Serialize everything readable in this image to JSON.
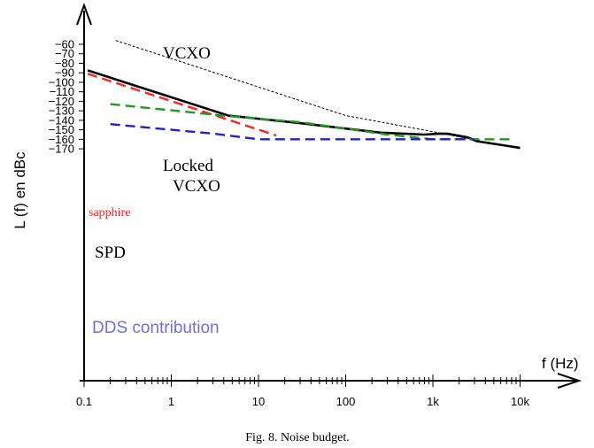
{
  "chart_data": {
    "type": "line",
    "xscale": "log",
    "xlim": [
      0.1,
      10000
    ],
    "ylim": [
      -178,
      -50
    ],
    "xlabel": "f (Hz)",
    "ylabel": "L (f) en dBc",
    "caption": "Fig. 8. Noise budget.",
    "x_ticks": [
      {
        "value": 0.1,
        "label": "0.1"
      },
      {
        "value": 1,
        "label": "1"
      },
      {
        "value": 10,
        "label": "10"
      },
      {
        "value": 100,
        "label": "100"
      },
      {
        "value": 1000,
        "label": "1k"
      },
      {
        "value": 10000,
        "label": "10k"
      }
    ],
    "y_ticks": [
      -60,
      -70,
      -80,
      -90,
      -100,
      -110,
      -120,
      -130,
      -140,
      -150,
      -160,
      -170
    ],
    "series": [
      {
        "id": "vcxo",
        "color": "#000000",
        "style": "fine-dashed",
        "points": [
          [
            0.23,
            -56
          ],
          [
            1,
            -75
          ],
          [
            10,
            -105
          ],
          [
            100,
            -135
          ],
          [
            1000,
            -152
          ],
          [
            10000,
            -170
          ]
        ]
      },
      {
        "id": "locked-vcxo",
        "color": "#000000",
        "style": "solid-thick",
        "points": [
          [
            0.11,
            -87.5
          ],
          [
            4.5,
            -135
          ],
          [
            30,
            -143
          ],
          [
            250,
            -153
          ],
          [
            800,
            -155
          ],
          [
            1200,
            -154
          ],
          [
            1500,
            -154.2
          ],
          [
            2500,
            -158
          ],
          [
            3200,
            -162
          ],
          [
            10000,
            -169
          ]
        ]
      },
      {
        "id": "sapphire",
        "color": "#ff2020",
        "style": "dashed",
        "points": [
          [
            0.11,
            -91
          ],
          [
            16,
            -156
          ]
        ]
      },
      {
        "id": "spd",
        "color": "#229922",
        "style": "dashed",
        "points": [
          [
            0.2,
            -123
          ],
          [
            5,
            -136
          ],
          [
            30,
            -142
          ],
          [
            300,
            -155
          ],
          [
            1000,
            -160
          ],
          [
            8000,
            -160
          ]
        ]
      },
      {
        "id": "dds",
        "color": "#2222cc",
        "style": "dashed",
        "points": [
          [
            0.2,
            -144
          ],
          [
            3,
            -154
          ],
          [
            10,
            -160
          ],
          [
            3000,
            -160
          ]
        ]
      }
    ],
    "annotations": [
      {
        "id": "vcxo-label",
        "text": "VCXO",
        "color": "#000000"
      },
      {
        "id": "locked-label-1",
        "text": "Locked",
        "color": "#000000"
      },
      {
        "id": "locked-label-2",
        "text": "VCXO",
        "color": "#000000"
      },
      {
        "id": "sapphire-label",
        "text": "sapphire",
        "color": "#ff2020"
      },
      {
        "id": "spd-label",
        "text": "SPD",
        "color": "#000000"
      },
      {
        "id": "dds-label",
        "text": "DDS contribution",
        "color": "#7070e0"
      }
    ]
  }
}
